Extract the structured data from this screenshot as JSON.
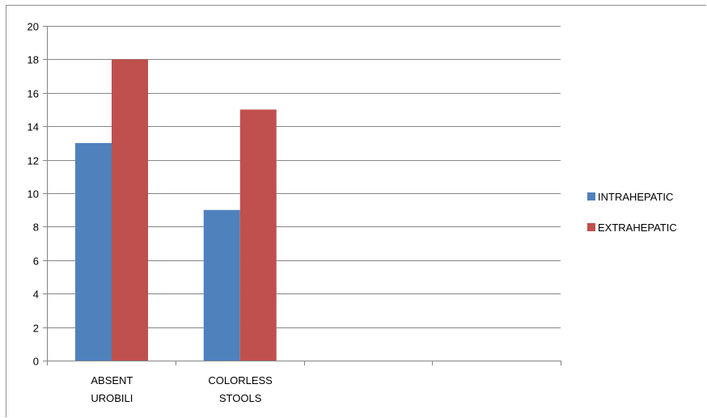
{
  "chart_data": {
    "type": "bar",
    "categories": [
      [
        "ABSENT",
        "UROBILI"
      ],
      [
        "COLORLESS",
        "STOOLS"
      ],
      [],
      []
    ],
    "series": [
      {
        "name": "INTRAHEPATIC",
        "color": "#4f81bd",
        "values": [
          13,
          9,
          null,
          null
        ]
      },
      {
        "name": "EXTRAHEPATIC",
        "color": "#c0504d",
        "values": [
          18,
          15,
          null,
          null
        ]
      }
    ],
    "yticks": [
      "0",
      "2",
      "4",
      "6",
      "8",
      "10",
      "12",
      "14",
      "16",
      "18",
      "20"
    ],
    "ylim": [
      0,
      20
    ],
    "grid": true,
    "legend": "right"
  }
}
